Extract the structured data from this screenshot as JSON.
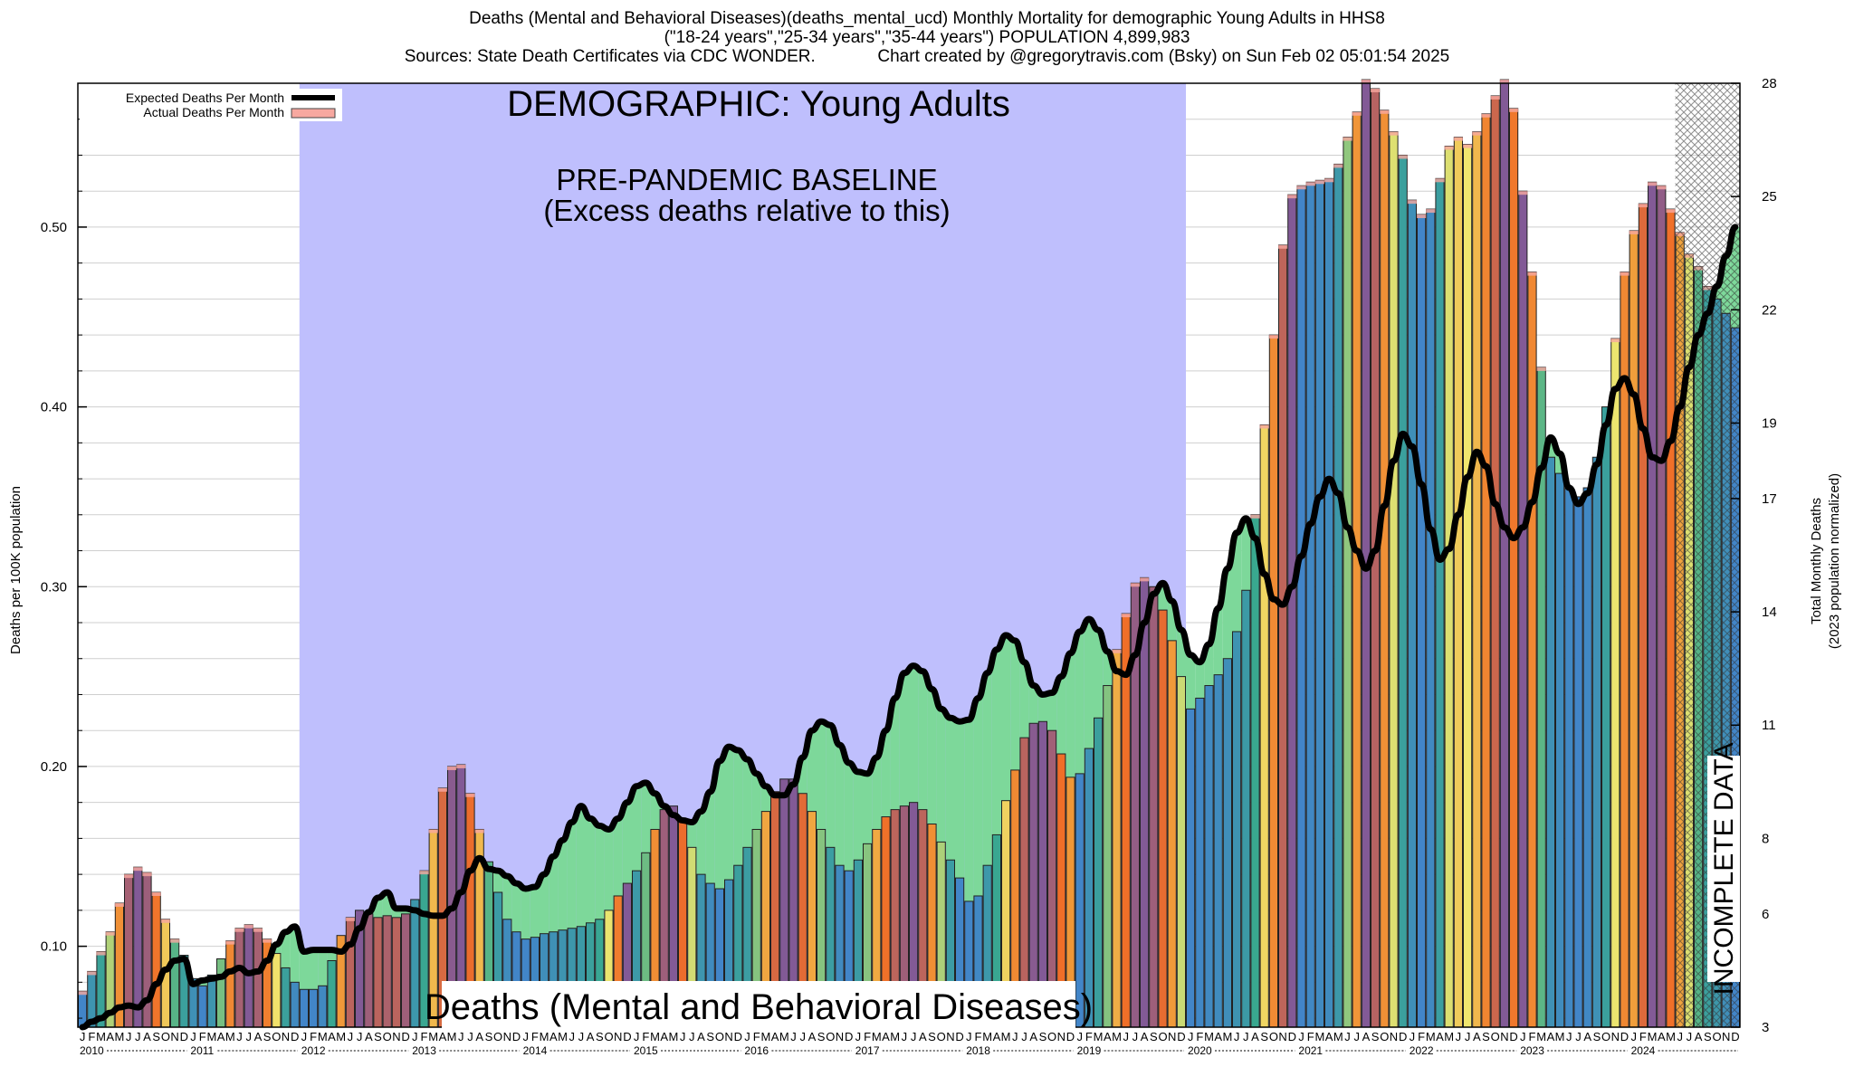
{
  "header": {
    "line1": "Deaths (Mental and Behavioral Diseases)(deaths_mental_ucd) Monthly Mortality for demographic Young Adults in HHS8",
    "line2": "(\"18-24 years\",\"25-34 years\",\"35-44 years\") POPULATION 4,899,983",
    "line3": "Sources: State Death Certificates via CDC WONDER.             Chart created by @gregorytravis.com (Bsky) on Sun Feb 02 05:01:54 2025"
  },
  "annotations": {
    "demographic": "DEMOGRAPHIC: Young Adults",
    "baseline_title": "PRE-PANDEMIC BASELINE",
    "baseline_sub": "(Excess deaths relative to this)",
    "bottom_title": "Deaths (Mental and Behavioral Diseases)",
    "incomplete": "INCOMPLETE DATA"
  },
  "legend": {
    "expected": "Expected Deaths Per Month",
    "actual": "Actual Deaths Per Month"
  },
  "axes": {
    "ylabel_left": "Deaths per 100K population",
    "ylabel_right_1": "Total Monthly Deaths",
    "ylabel_right_2": "(2023 population normalized)",
    "left_ticks": [
      "0.10",
      "0.20",
      "0.30",
      "0.40",
      "0.50"
    ],
    "right_ticks": [
      "3",
      "6",
      "8",
      "11",
      "14",
      "17",
      "19",
      "22",
      "25",
      "28"
    ],
    "month_letters": [
      "J",
      "F",
      "M",
      "A",
      "M",
      "J",
      "J",
      "A",
      "S",
      "O",
      "N",
      "D"
    ],
    "years": [
      "2010",
      "2011",
      "2012",
      "2013",
      "2014",
      "2015",
      "2016",
      "2017",
      "2018",
      "2019",
      "2020",
      "2021",
      "2022",
      "2023",
      "2024"
    ]
  },
  "colors": {
    "baseline_fill": "#bfbffd",
    "excess_fill": "#f7a8a0",
    "deficit_fill": "#7dd89a",
    "expected_line": "#000000",
    "incomplete_hatch": "#555555"
  },
  "chart_data": {
    "type": "bar",
    "x_start": "2010-01",
    "x_end": "2024-12",
    "ylim": [
      0.055,
      0.58
    ],
    "y2lim": [
      3,
      28
    ],
    "baseline_period": [
      "2012-01",
      "2019-12"
    ],
    "incomplete_from": "2024-07",
    "grid": true,
    "legend_position": "top-left",
    "series": [
      {
        "name": "Actual Deaths Per Month",
        "values": [
          0.075,
          0.086,
          0.097,
          0.108,
          0.124,
          0.14,
          0.144,
          0.141,
          0.13,
          0.115,
          0.104,
          0.095,
          0.082,
          0.078,
          0.084,
          0.093,
          0.103,
          0.11,
          0.112,
          0.11,
          0.104,
          0.096,
          0.088,
          0.08,
          0.076,
          0.076,
          0.078,
          0.092,
          0.106,
          0.116,
          0.12,
          0.118,
          0.116,
          0.117,
          0.116,
          0.118,
          0.126,
          0.142,
          0.165,
          0.188,
          0.2,
          0.201,
          0.185,
          0.165,
          0.147,
          0.13,
          0.115,
          0.108,
          0.104,
          0.105,
          0.107,
          0.108,
          0.109,
          0.11,
          0.111,
          0.113,
          0.115,
          0.12,
          0.128,
          0.135,
          0.142,
          0.152,
          0.165,
          0.176,
          0.178,
          0.17,
          0.155,
          0.14,
          0.135,
          0.132,
          0.137,
          0.145,
          0.155,
          0.165,
          0.175,
          0.186,
          0.193,
          0.193,
          0.185,
          0.175,
          0.165,
          0.155,
          0.145,
          0.142,
          0.148,
          0.157,
          0.165,
          0.172,
          0.176,
          0.178,
          0.18,
          0.176,
          0.168,
          0.158,
          0.148,
          0.138,
          0.125,
          0.128,
          0.145,
          0.162,
          0.181,
          0.198,
          0.216,
          0.224,
          0.225,
          0.22,
          0.207,
          0.194,
          0.196,
          0.21,
          0.227,
          0.245,
          0.265,
          0.285,
          0.302,
          0.305,
          0.3,
          0.287,
          0.27,
          0.25,
          0.232,
          0.238,
          0.245,
          0.251,
          0.26,
          0.275,
          0.298,
          0.34,
          0.39,
          0.44,
          0.49,
          0.518,
          0.523,
          0.525,
          0.526,
          0.527,
          0.535,
          0.55,
          0.564,
          0.582,
          0.577,
          0.565,
          0.553,
          0.54,
          0.515,
          0.507,
          0.51,
          0.527,
          0.545,
          0.55,
          0.546,
          0.553,
          0.563,
          0.573,
          0.582,
          0.566,
          0.52,
          0.475,
          0.422,
          0.372,
          0.363,
          0.355,
          0.35,
          0.355,
          0.372,
          0.4,
          0.438,
          0.475,
          0.498,
          0.513,
          0.525,
          0.523,
          0.51,
          0.497,
          0.485,
          0.478,
          0.467,
          0.46,
          0.452,
          0.444
        ]
      },
      {
        "name": "Expected Deaths Per Month",
        "values": [
          0.055,
          0.058,
          0.06,
          0.063,
          0.066,
          0.067,
          0.066,
          0.07,
          0.079,
          0.087,
          0.092,
          0.093,
          0.079,
          0.081,
          0.082,
          0.083,
          0.086,
          0.088,
          0.085,
          0.086,
          0.092,
          0.101,
          0.108,
          0.111,
          0.097,
          0.098,
          0.098,
          0.098,
          0.097,
          0.101,
          0.11,
          0.119,
          0.127,
          0.13,
          0.121,
          0.121,
          0.12,
          0.118,
          0.117,
          0.117,
          0.121,
          0.13,
          0.142,
          0.149,
          0.143,
          0.142,
          0.139,
          0.135,
          0.132,
          0.133,
          0.14,
          0.15,
          0.159,
          0.169,
          0.178,
          0.171,
          0.167,
          0.165,
          0.171,
          0.18,
          0.189,
          0.191,
          0.185,
          0.178,
          0.173,
          0.17,
          0.169,
          0.175,
          0.186,
          0.203,
          0.211,
          0.209,
          0.204,
          0.196,
          0.189,
          0.184,
          0.184,
          0.19,
          0.205,
          0.22,
          0.225,
          0.223,
          0.212,
          0.202,
          0.197,
          0.196,
          0.205,
          0.22,
          0.238,
          0.252,
          0.256,
          0.253,
          0.243,
          0.232,
          0.227,
          0.225,
          0.226,
          0.238,
          0.252,
          0.265,
          0.273,
          0.27,
          0.258,
          0.245,
          0.24,
          0.241,
          0.25,
          0.263,
          0.275,
          0.282,
          0.276,
          0.264,
          0.253,
          0.251,
          0.262,
          0.28,
          0.296,
          0.302,
          0.292,
          0.276,
          0.262,
          0.258,
          0.268,
          0.288,
          0.31,
          0.33,
          0.338,
          0.327,
          0.307,
          0.293,
          0.29,
          0.3,
          0.317,
          0.335,
          0.35,
          0.36,
          0.352,
          0.333,
          0.32,
          0.31,
          0.32,
          0.345,
          0.37,
          0.385,
          0.378,
          0.357,
          0.332,
          0.315,
          0.321,
          0.34,
          0.361,
          0.375,
          0.367,
          0.346,
          0.333,
          0.327,
          0.333,
          0.347,
          0.366,
          0.383,
          0.374,
          0.355,
          0.346,
          0.352,
          0.368,
          0.39,
          0.41,
          0.416,
          0.407,
          0.388,
          0.372,
          0.37,
          0.381,
          0.4,
          0.422,
          0.44,
          0.452,
          0.467,
          0.484,
          0.5
        ]
      }
    ]
  }
}
